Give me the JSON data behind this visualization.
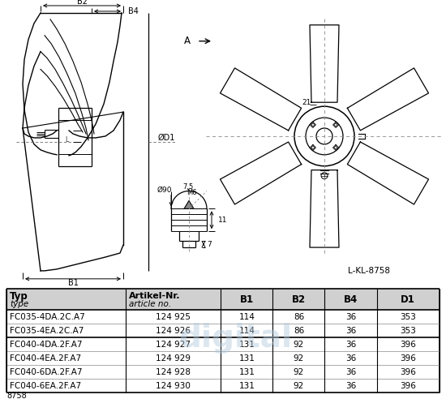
{
  "bg_color": "#ffffff",
  "table_header_bg": "#d4d4d4",
  "col_headers_line1": [
    "Typ",
    "Artikel-Nr.",
    "B1",
    "B2",
    "B4",
    "D1"
  ],
  "col_headers_line2": [
    "type",
    "article no.",
    "",
    "",
    "",
    ""
  ],
  "col_props": [
    0.0,
    0.275,
    0.495,
    0.615,
    0.735,
    0.855,
    1.0
  ],
  "rows": [
    [
      "FC035-4DA.2C.A7",
      "124 925",
      "114",
      "86",
      "36",
      "353"
    ],
    [
      "FC035-4EA.2C.A7",
      "124 926",
      "114",
      "86",
      "36",
      "353"
    ],
    [
      "FC040-4DA.2F.A7",
      "124 927",
      "131",
      "92",
      "36",
      "396"
    ],
    [
      "FC040-4EA.2F.A7",
      "124 929",
      "131",
      "92",
      "36",
      "396"
    ],
    [
      "FC040-6DA.2F.A7",
      "124 928",
      "131",
      "92",
      "36",
      "396"
    ],
    [
      "FC040-6EA.2F.A7",
      "124 930",
      "131",
      "92",
      "36",
      "396"
    ]
  ],
  "group_sep_after": 1,
  "footnote": "8758",
  "drawing_label": "L-KL-8758",
  "watermark_text": "digital",
  "watermark_color": "#b0c8dc"
}
